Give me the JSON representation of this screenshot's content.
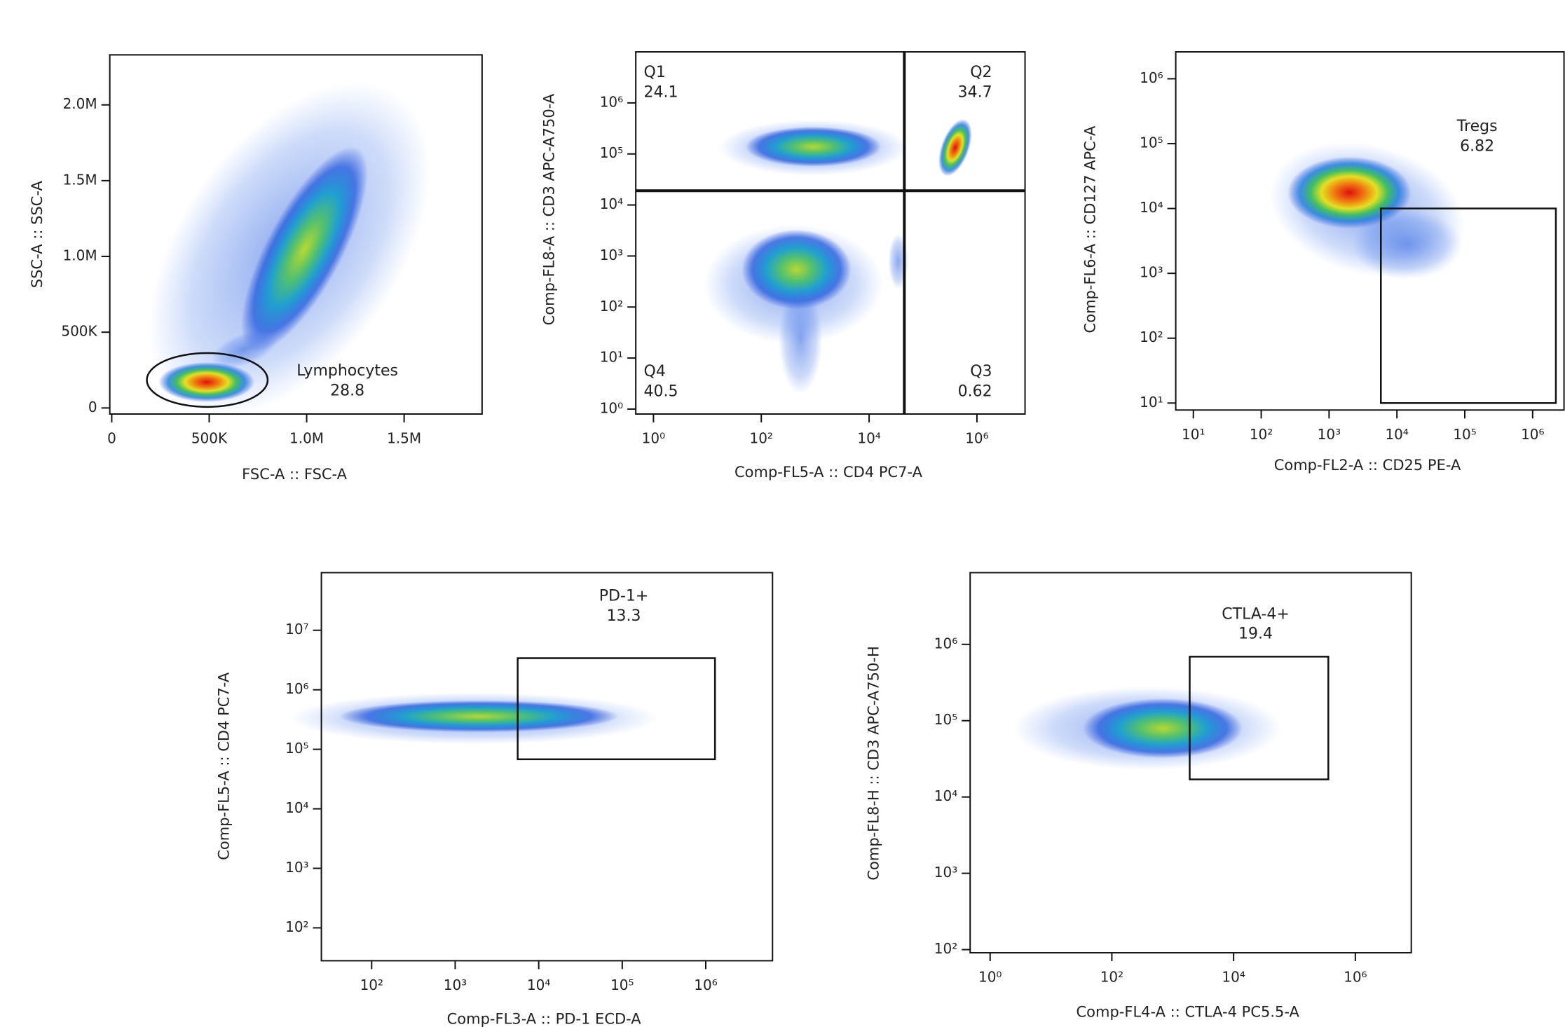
{
  "chart_data": [
    {
      "type": "scatter",
      "x_label": "FSC-A :: FSC-A",
      "y_label": "SSC-A :: SSC-A",
      "xscale": "linear",
      "yscale": "linear",
      "xlim": [
        -10000,
        1900000
      ],
      "ylim": [
        -40000,
        2330000
      ],
      "xticks": [
        0,
        {
          "value": 500000,
          "label": "500K"
        },
        {
          "value": 1000000,
          "label": "1.0M"
        },
        {
          "value": 1500000,
          "label": "1.5M"
        }
      ],
      "yticks": [
        0,
        {
          "value": 500000,
          "label": "500K"
        },
        {
          "value": 1000000,
          "label": "1.0M"
        },
        {
          "value": 1500000,
          "label": "1.5M"
        },
        {
          "value": 2000000,
          "label": "2.0M"
        }
      ],
      "gates": [
        {
          "shape": "ellipse",
          "name": "Lymphocytes",
          "value": 28.8,
          "x": [
            180000,
            800000
          ],
          "y": [
            7000,
            362000
          ]
        }
      ]
    },
    {
      "type": "scatter",
      "x_label": "Comp-FL5-A :: CD4 PC7-A",
      "y_label": "Comp-FL8-A :: CD3 APC-A750-A",
      "xscale": "log",
      "yscale": "log",
      "xlim": [
        0.47,
        7800000
      ],
      "ylim": [
        0.8,
        10000000
      ],
      "xticks": [
        {
          "value": 1,
          "label": "10⁰"
        },
        {
          "value": 100,
          "label": "10²"
        },
        {
          "value": 10000,
          "label": "10⁴"
        },
        {
          "value": 1000000,
          "label": "10⁶"
        }
      ],
      "yticks": [
        {
          "value": 1,
          "label": "10⁰"
        },
        {
          "value": 10,
          "label": "10¹"
        },
        {
          "value": 100,
          "label": "10²"
        },
        {
          "value": 1000,
          "label": "10³"
        },
        {
          "value": 10000,
          "label": "10⁴"
        },
        {
          "value": 100000,
          "label": "10⁵"
        },
        {
          "value": 1000000,
          "label": "10⁶"
        }
      ],
      "quadrant": {
        "x": 45000,
        "y": 19000
      },
      "gates": [
        {
          "name": "Q1",
          "value": 24.1
        },
        {
          "name": "Q2",
          "value": 34.7
        },
        {
          "name": "Q3",
          "value": 0.62
        },
        {
          "name": "Q4",
          "value": 40.5
        }
      ]
    },
    {
      "type": "scatter",
      "x_label": "Comp-FL2-A :: CD25 PE-A",
      "y_label": "Comp-FL6-A :: CD127 APC-A",
      "xscale": "log",
      "yscale": "log",
      "xlim": [
        5.5,
        2900000
      ],
      "ylim": [
        7.8,
        2600000
      ],
      "xticks": [
        {
          "value": 10,
          "label": "10¹"
        },
        {
          "value": 100,
          "label": "10²"
        },
        {
          "value": 1000,
          "label": "10³"
        },
        {
          "value": 10000,
          "label": "10⁴"
        },
        {
          "value": 100000,
          "label": "10⁵"
        },
        {
          "value": 1000000,
          "label": "10⁶"
        }
      ],
      "yticks": [
        {
          "value": 10,
          "label": "10¹"
        },
        {
          "value": 100,
          "label": "10²"
        },
        {
          "value": 1000,
          "label": "10³"
        },
        {
          "value": 10000,
          "label": "10⁴"
        },
        {
          "value": 100000,
          "label": "10⁵"
        },
        {
          "value": 1000000,
          "label": "10⁶"
        }
      ],
      "gates": [
        {
          "shape": "rect",
          "name": "Tregs",
          "value": 6.82,
          "x": [
            5800,
            2200000
          ],
          "y": [
            10,
            10000
          ]
        }
      ]
    },
    {
      "type": "scatter",
      "x_label": "Comp-FL3-A :: PD-1 ECD-A",
      "y_label": "Comp-FL5-A :: CD4 PC7-A",
      "xscale": "log",
      "yscale": "log",
      "xlim": [
        25,
        6300000
      ],
      "ylim": [
        28,
        93000000
      ],
      "xticks": [
        {
          "value": 100,
          "label": "10²"
        },
        {
          "value": 1000,
          "label": "10³"
        },
        {
          "value": 10000,
          "label": "10⁴"
        },
        {
          "value": 100000,
          "label": "10⁵"
        },
        {
          "value": 1000000,
          "label": "10⁶"
        }
      ],
      "yticks": [
        {
          "value": 100,
          "label": "10²"
        },
        {
          "value": 1000,
          "label": "10³"
        },
        {
          "value": 10000,
          "label": "10⁴"
        },
        {
          "value": 100000,
          "label": "10⁵"
        },
        {
          "value": 1000000,
          "label": "10⁶"
        },
        {
          "value": 10000000,
          "label": "10⁷"
        }
      ],
      "gates": [
        {
          "shape": "rect",
          "name": "PD-1+",
          "value": 13.3,
          "x": [
            5600,
            1290000
          ],
          "y": [
            68000,
            3400000
          ]
        }
      ]
    },
    {
      "type": "scatter",
      "x_label": "Comp-FL4-A :: CTLA-4 PC5.5-A",
      "y_label": "Comp-FL8-H :: CD3 APC-A750-H",
      "xscale": "log",
      "yscale": "log",
      "xlim": [
        0.47,
        8300000
      ],
      "ylim": [
        91,
        8700000
      ],
      "xticks": [
        {
          "value": 1,
          "label": "10⁰"
        },
        {
          "value": 100,
          "label": "10²"
        },
        {
          "value": 10000,
          "label": "10⁴"
        },
        {
          "value": 1000000,
          "label": "10⁶"
        }
      ],
      "yticks": [
        {
          "value": 100,
          "label": "10²"
        },
        {
          "value": 1000,
          "label": "10³"
        },
        {
          "value": 10000,
          "label": "10⁴"
        },
        {
          "value": 100000,
          "label": "10⁵"
        },
        {
          "value": 1000000,
          "label": "10⁶"
        }
      ],
      "gates": [
        {
          "shape": "rect",
          "name": "CTLA-4+",
          "value": 19.4,
          "x": [
            1900,
            360000
          ],
          "y": [
            17000,
            690000
          ]
        }
      ]
    }
  ]
}
